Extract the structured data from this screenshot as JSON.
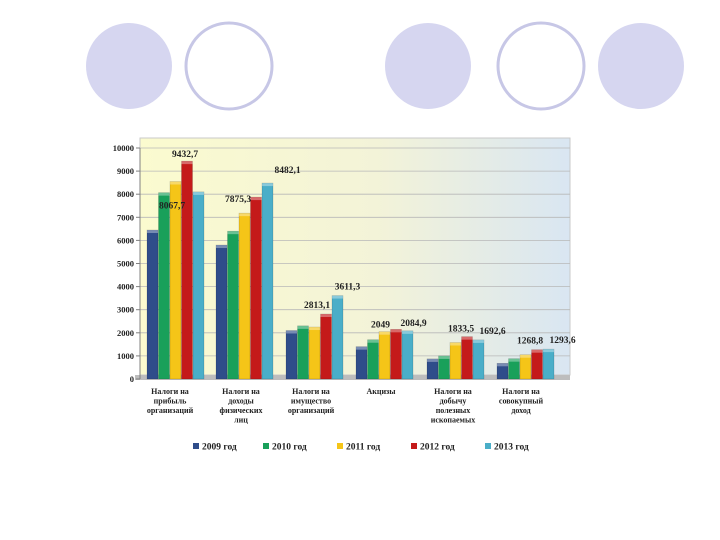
{
  "decor": {
    "circle_fill": "#d6d6f0",
    "circle_stroke": "#c7c7e6"
  },
  "chart_data": {
    "type": "bar",
    "title": "",
    "xlabel": "",
    "ylabel": "",
    "ylim": [
      0,
      10000
    ],
    "yticks": [
      0,
      1000,
      2000,
      3000,
      4000,
      5000,
      6000,
      7000,
      8000,
      9000,
      10000
    ],
    "grid": true,
    "legend_position": "bottom",
    "categories": [
      [
        "Налоги на",
        "прибыль",
        "организаций"
      ],
      [
        "Налоги на",
        "доходы",
        "физических",
        "лиц"
      ],
      [
        "Налоги на",
        "имущество",
        "организаций"
      ],
      [
        "Акцизы"
      ],
      [
        "Налоги на",
        "добычу",
        "полезных",
        "ископаемых"
      ],
      [
        "Налоги на",
        "совокупный",
        "доход"
      ]
    ],
    "series": [
      {
        "name": "2009 год",
        "color": "#2f4d8a",
        "values": [
          6450,
          5800,
          2100,
          1400,
          870,
          680
        ]
      },
      {
        "name": "2010 год",
        "color": "#19a05a",
        "values": [
          8067.7,
          6400,
          2300,
          1700,
          1000,
          880
        ]
      },
      {
        "name": "2011 год",
        "color": "#f5c518",
        "values": [
          8550,
          7180,
          2250,
          2049,
          1580,
          1050
        ]
      },
      {
        "name": "2012 год",
        "color": "#c41a1a",
        "values": [
          9432.7,
          7875.3,
          2813.1,
          2150,
          1833.5,
          1268.8
        ]
      },
      {
        "name": "2013 год",
        "color": "#4aaec8",
        "values": [
          8100,
          8482.1,
          3611.3,
          2084.9,
          1692.6,
          1293.6
        ]
      }
    ],
    "data_labels": [
      {
        "category": 0,
        "series": 3,
        "text": "9432,7"
      },
      {
        "category": 0,
        "series": 1,
        "text": "8067,7"
      },
      {
        "category": 1,
        "series": 3,
        "text": "7875,3"
      },
      {
        "category": 1,
        "series": 4,
        "text": "8482,1"
      },
      {
        "category": 2,
        "series": 3,
        "text": "2813,1"
      },
      {
        "category": 2,
        "series": 4,
        "text": "3611,3"
      },
      {
        "category": 3,
        "series": 2,
        "text": "2049"
      },
      {
        "category": 3,
        "series": 4,
        "text": "2084,9"
      },
      {
        "category": 4,
        "series": 3,
        "text": "1833,5"
      },
      {
        "category": 4,
        "series": 4,
        "text": "1692,6"
      },
      {
        "category": 5,
        "series": 3,
        "text": "1268,8"
      },
      {
        "category": 5,
        "series": 4,
        "text": "1293,6"
      }
    ]
  }
}
